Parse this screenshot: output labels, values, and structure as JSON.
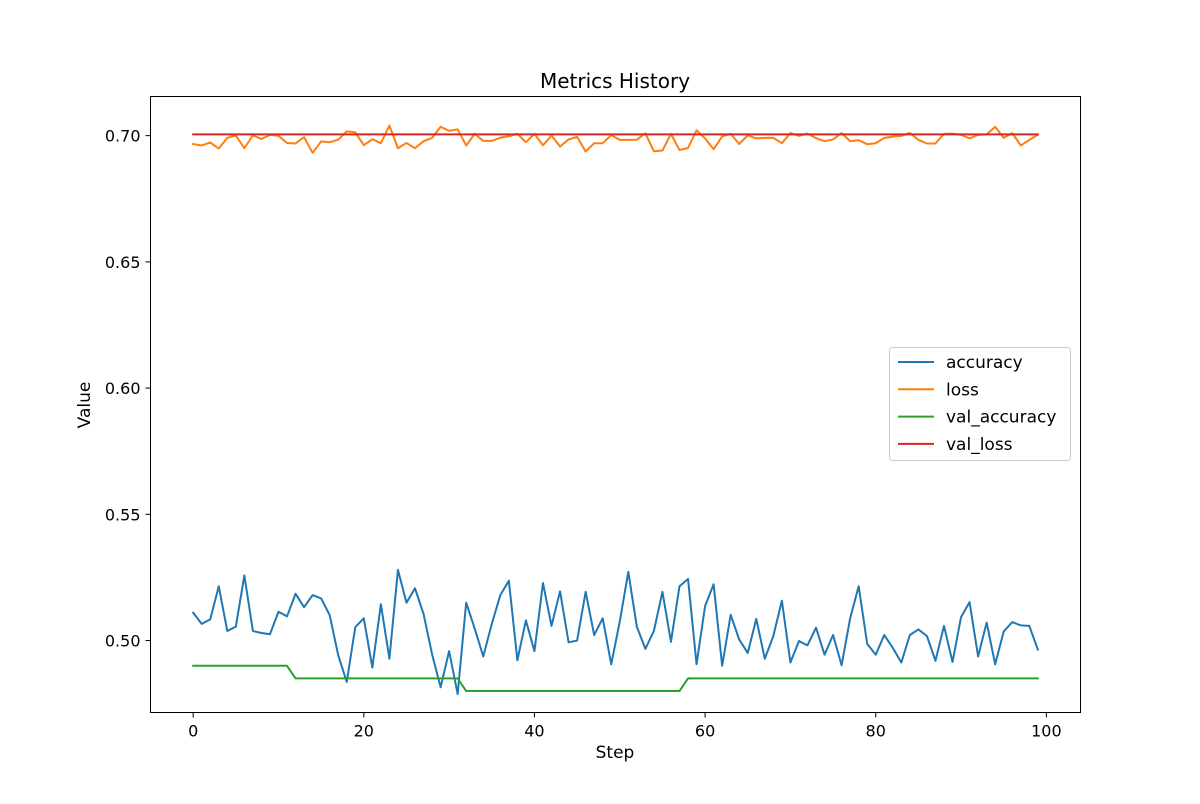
{
  "chart_data": {
    "type": "line",
    "title": "Metrics History",
    "xlabel": "Step",
    "ylabel": "Value",
    "xlim": [
      -5,
      104
    ],
    "ylim": [
      0.4715,
      0.7155
    ],
    "xticks": [
      0,
      20,
      40,
      60,
      80,
      100
    ],
    "xtick_labels": [
      "0",
      "20",
      "40",
      "60",
      "80",
      "100"
    ],
    "yticks": [
      0.5,
      0.55,
      0.6,
      0.65,
      0.7
    ],
    "ytick_labels": [
      "0.50",
      "0.55",
      "0.60",
      "0.65",
      "0.70"
    ],
    "grid": false,
    "legend_position": "center-right",
    "x": [
      0,
      1,
      2,
      3,
      4,
      5,
      6,
      7,
      8,
      9,
      10,
      11,
      12,
      13,
      14,
      15,
      16,
      17,
      18,
      19,
      20,
      21,
      22,
      23,
      24,
      25,
      26,
      27,
      28,
      29,
      30,
      31,
      32,
      33,
      34,
      35,
      36,
      37,
      38,
      39,
      40,
      41,
      42,
      43,
      44,
      45,
      46,
      47,
      48,
      49,
      50,
      51,
      52,
      53,
      54,
      55,
      56,
      57,
      58,
      59,
      60,
      61,
      62,
      63,
      64,
      65,
      66,
      67,
      68,
      69,
      70,
      71,
      72,
      73,
      74,
      75,
      76,
      77,
      78,
      79,
      80,
      81,
      82,
      83,
      84,
      85,
      86,
      87,
      88,
      89,
      90,
      91,
      92,
      93,
      94,
      95,
      96,
      97,
      98,
      99
    ],
    "series": [
      {
        "name": "accuracy",
        "color": "#1f77b4",
        "values": [
          0.511,
          0.5066,
          0.5084,
          0.5215,
          0.5038,
          0.5055,
          0.5258,
          0.5038,
          0.503,
          0.5025,
          0.5114,
          0.5096,
          0.5185,
          0.5132,
          0.518,
          0.5167,
          0.5101,
          0.4942,
          0.4836,
          0.5053,
          0.5088,
          0.4893,
          0.5144,
          0.4928,
          0.528,
          0.515,
          0.5207,
          0.5106,
          0.4946,
          0.4815,
          0.4958,
          0.4788,
          0.515,
          0.5047,
          0.4937,
          0.5066,
          0.518,
          0.5237,
          0.4922,
          0.508,
          0.4958,
          0.5228,
          0.5058,
          0.5195,
          0.4993,
          0.5,
          0.5193,
          0.5022,
          0.5088,
          0.4906,
          0.5075,
          0.5272,
          0.5055,
          0.4967,
          0.5038,
          0.5193,
          0.4995,
          0.5215,
          0.5244,
          0.4906,
          0.5137,
          0.5223,
          0.49,
          0.5102,
          0.5004,
          0.4951,
          0.5086,
          0.4928,
          0.5018,
          0.5158,
          0.4913,
          0.4998,
          0.4981,
          0.5051,
          0.4944,
          0.5022,
          0.4902,
          0.5088,
          0.5215,
          0.4987,
          0.4944,
          0.5022,
          0.4971,
          0.4913,
          0.5022,
          0.5044,
          0.5018,
          0.492,
          0.5058,
          0.4915,
          0.5093,
          0.5152,
          0.4937,
          0.5071,
          0.4906,
          0.5036,
          0.5073,
          0.506,
          0.5058,
          0.4964
        ]
      },
      {
        "name": "loss",
        "color": "#ff7f0e",
        "values": [
          0.6967,
          0.6961,
          0.6973,
          0.6949,
          0.6991,
          0.7001,
          0.695,
          0.7001,
          0.6987,
          0.7003,
          0.6999,
          0.6971,
          0.6969,
          0.6994,
          0.6932,
          0.6977,
          0.6974,
          0.6984,
          0.7017,
          0.7013,
          0.6962,
          0.6986,
          0.697,
          0.704,
          0.695,
          0.6971,
          0.695,
          0.6978,
          0.6991,
          0.7035,
          0.7019,
          0.7025,
          0.6961,
          0.7007,
          0.6979,
          0.6979,
          0.6992,
          0.6998,
          0.7007,
          0.6974,
          0.7007,
          0.6962,
          0.7,
          0.6957,
          0.6985,
          0.6995,
          0.6937,
          0.697,
          0.697,
          0.7002,
          0.6983,
          0.6983,
          0.6984,
          0.7009,
          0.6938,
          0.6941,
          0.7007,
          0.6943,
          0.6951,
          0.7021,
          0.6989,
          0.6946,
          0.6997,
          0.7007,
          0.6967,
          0.7001,
          0.6989,
          0.6991,
          0.6991,
          0.697,
          0.701,
          0.6999,
          0.7008,
          0.699,
          0.6978,
          0.6985,
          0.701,
          0.6978,
          0.6982,
          0.6966,
          0.697,
          0.6991,
          0.6996,
          0.6999,
          0.7011,
          0.6983,
          0.6969,
          0.6969,
          0.7007,
          0.7008,
          0.7003,
          0.6989,
          0.7003,
          0.7005,
          0.7035,
          0.6991,
          0.701,
          0.6961,
          0.6983,
          0.7004
        ]
      },
      {
        "name": "val_accuracy",
        "color": "#2ca02c",
        "values": [
          0.49,
          0.49,
          0.49,
          0.49,
          0.49,
          0.49,
          0.49,
          0.49,
          0.49,
          0.49,
          0.49,
          0.49,
          0.485,
          0.485,
          0.485,
          0.485,
          0.485,
          0.485,
          0.485,
          0.485,
          0.485,
          0.485,
          0.485,
          0.485,
          0.485,
          0.485,
          0.485,
          0.485,
          0.485,
          0.485,
          0.485,
          0.485,
          0.48,
          0.48,
          0.48,
          0.48,
          0.48,
          0.48,
          0.48,
          0.48,
          0.48,
          0.48,
          0.48,
          0.48,
          0.48,
          0.48,
          0.48,
          0.48,
          0.48,
          0.48,
          0.48,
          0.48,
          0.48,
          0.48,
          0.48,
          0.48,
          0.48,
          0.48,
          0.485,
          0.485,
          0.485,
          0.485,
          0.485,
          0.485,
          0.485,
          0.485,
          0.485,
          0.485,
          0.485,
          0.485,
          0.485,
          0.485,
          0.485,
          0.485,
          0.485,
          0.485,
          0.485,
          0.485,
          0.485,
          0.485,
          0.485,
          0.485,
          0.485,
          0.485,
          0.485,
          0.485,
          0.485,
          0.485,
          0.485,
          0.485,
          0.485,
          0.485,
          0.485,
          0.485,
          0.485,
          0.485,
          0.485,
          0.485,
          0.485,
          0.485
        ]
      },
      {
        "name": "val_loss",
        "color": "#d62728",
        "values": [
          0.7005,
          0.7005,
          0.7005,
          0.7005,
          0.7005,
          0.7005,
          0.7005,
          0.7005,
          0.7005,
          0.7005,
          0.7005,
          0.7005,
          0.7005,
          0.7005,
          0.7005,
          0.7005,
          0.7005,
          0.7005,
          0.7005,
          0.7005,
          0.7005,
          0.7005,
          0.7005,
          0.7005,
          0.7005,
          0.7005,
          0.7005,
          0.7005,
          0.7005,
          0.7005,
          0.7005,
          0.7005,
          0.7005,
          0.7005,
          0.7005,
          0.7005,
          0.7005,
          0.7005,
          0.7005,
          0.7005,
          0.7005,
          0.7005,
          0.7005,
          0.7005,
          0.7005,
          0.7005,
          0.7005,
          0.7005,
          0.7005,
          0.7005,
          0.7005,
          0.7005,
          0.7005,
          0.7005,
          0.7005,
          0.7005,
          0.7005,
          0.7005,
          0.7005,
          0.7005,
          0.7005,
          0.7005,
          0.7005,
          0.7005,
          0.7005,
          0.7005,
          0.7005,
          0.7005,
          0.7005,
          0.7005,
          0.7005,
          0.7005,
          0.7005,
          0.7005,
          0.7005,
          0.7005,
          0.7005,
          0.7005,
          0.7005,
          0.7005,
          0.7005,
          0.7005,
          0.7005,
          0.7005,
          0.7005,
          0.7005,
          0.7005,
          0.7005,
          0.7005,
          0.7005,
          0.7005,
          0.7005,
          0.7005,
          0.7005,
          0.7005,
          0.7005,
          0.7005,
          0.7005,
          0.7005,
          0.7005
        ]
      }
    ]
  }
}
